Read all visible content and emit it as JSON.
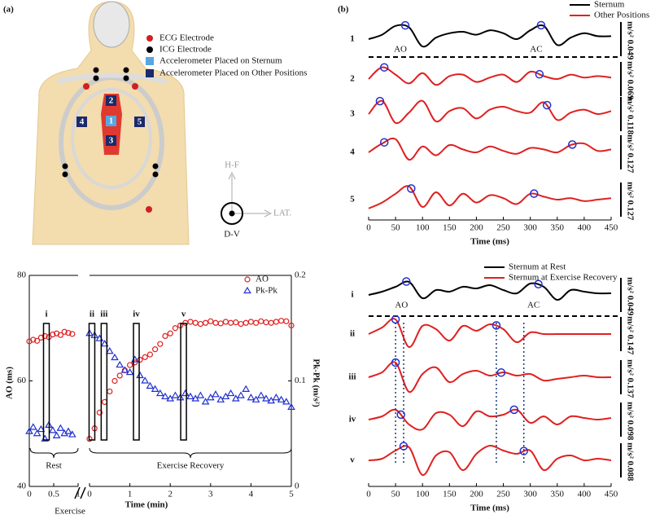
{
  "panel_labels": [
    "(a)",
    "(b)"
  ],
  "panel_a": {
    "legend": [
      "ECG Electrode",
      "ICG Electrode",
      "Accelerometer Placed on Sternum",
      "Accelerometer Placed on Other Positions"
    ],
    "positions": [
      "1",
      "2",
      "3",
      "4",
      "5"
    ],
    "axes": [
      "H-F",
      "LAT.",
      "D-V"
    ]
  },
  "chart_data": [
    {
      "type": "line",
      "xlabel": "Time (ms)",
      "xlim": [
        0,
        450
      ],
      "xticks": [
        0,
        50,
        100,
        150,
        200,
        250,
        300,
        350,
        400,
        450
      ],
      "legend": [
        {
          "name": "Sternum",
          "color": "#000000"
        },
        {
          "name": "Other Positions",
          "color": "#e02020"
        }
      ],
      "annotations": [
        "AO",
        "AC"
      ],
      "scale_unit": "m/s²",
      "x": [
        0,
        25,
        50,
        75,
        100,
        125,
        150,
        175,
        200,
        225,
        250,
        275,
        300,
        325,
        350,
        375,
        400,
        425,
        450
      ],
      "series": [
        {
          "label": "1",
          "color": "#000000",
          "scale": 0.049,
          "ao": 68,
          "ac": 320,
          "values": [
            0,
            0.3,
            0.9,
            0.8,
            -0.5,
            0.1,
            0.4,
            0.5,
            0.3,
            0.6,
            0.4,
            0.0,
            0.6,
            0.9,
            -0.4,
            0.1,
            0.4,
            0.2,
            0.2
          ]
        },
        {
          "label": "2",
          "color": "#e02020",
          "scale": 0.069,
          "ao": 29,
          "ac": 317,
          "values": [
            0,
            0.8,
            0.3,
            -0.3,
            0.4,
            -0.4,
            0.2,
            0.3,
            -0.2,
            0.1,
            0.3,
            -0.2,
            0.5,
            0.2,
            0.0,
            0.3,
            0.1,
            0.2,
            0.1
          ]
        },
        {
          "label": "3",
          "color": "#e02020",
          "scale": 0.118,
          "ao": 21,
          "ac": 331,
          "values": [
            0,
            0.9,
            -0.6,
            0.1,
            0.9,
            -0.5,
            0.2,
            0.4,
            -0.3,
            0.3,
            0.5,
            0.2,
            0.1,
            0.8,
            -0.4,
            0.1,
            0.3,
            0.0,
            0.2
          ]
        },
        {
          "label": "4",
          "color": "#e02020",
          "scale": 0.127,
          "ao": 29,
          "ac": 378,
          "values": [
            0,
            0.6,
            0.9,
            -0.5,
            0.4,
            -0.2,
            0.5,
            0.2,
            0.0,
            0.4,
            0.1,
            -0.1,
            0.3,
            0.2,
            0.0,
            0.5,
            0.6,
            0.1,
            0.2
          ]
        },
        {
          "label": "5",
          "color": "#e02020",
          "scale": 0.127,
          "ao": 79,
          "ac": 307,
          "values": [
            -0.6,
            -0.2,
            0.4,
            0.9,
            -0.5,
            0.5,
            -0.4,
            0.4,
            -0.2,
            0.3,
            0.1,
            -0.3,
            0.4,
            0.2,
            0.0,
            0.1,
            -0.1,
            0.0,
            0.1
          ]
        }
      ]
    },
    {
      "type": "scatter",
      "xlabel": "Time (min)",
      "ylabel": "AO (ms)",
      "y2label": "Pk-Pk (m/s²)",
      "ylim": [
        40,
        80
      ],
      "yticks": [
        40,
        60,
        80
      ],
      "y2lim": [
        0,
        0.2
      ],
      "y2ticks": [
        0,
        0.1,
        0.2
      ],
      "break_label": "Exercise",
      "segments": [
        {
          "name": "Rest",
          "xlim": [
            0,
            1
          ],
          "xticks": [
            0,
            0.5,
            1
          ]
        },
        {
          "name": "Exercise Recovery",
          "xlim": [
            0,
            5
          ],
          "xticks": [
            0,
            1,
            2,
            3,
            4,
            5
          ]
        }
      ],
      "highlights": [
        {
          "label": "i",
          "segment": 0,
          "x": 0.35
        },
        {
          "label": "ii",
          "segment": 1,
          "x": 0.06
        },
        {
          "label": "iii",
          "segment": 1,
          "x": 0.36
        },
        {
          "label": "iv",
          "segment": 1,
          "x": 1.16
        },
        {
          "label": "v",
          "segment": 1,
          "x": 2.33
        }
      ],
      "series": [
        {
          "name": "AO",
          "color": "#e02020",
          "marker": "circle",
          "axis": "y",
          "segments": [
            {
              "x": [
                0,
                0.08,
                0.16,
                0.24,
                0.32,
                0.4,
                0.48,
                0.56,
                0.64,
                0.72,
                0.8,
                0.88
              ],
              "values": [
                67.5,
                67.8,
                67.6,
                68.2,
                68.5,
                68.3,
                68.8,
                69.0,
                68.7,
                69.3,
                69.1,
                68.9
              ]
            },
            {
              "x": [
                0,
                0.125,
                0.25,
                0.375,
                0.5,
                0.625,
                0.75,
                0.875,
                1,
                1.125,
                1.25,
                1.375,
                1.5,
                1.625,
                1.75,
                1.875,
                2,
                2.125,
                2.25,
                2.375,
                2.5,
                2.625,
                2.75,
                2.875,
                3,
                3.125,
                3.25,
                3.375,
                3.5,
                3.625,
                3.75,
                3.875,
                4,
                4.125,
                4.25,
                4.375,
                4.5,
                4.625,
                4.75,
                4.875,
                5
              ],
              "values": [
                49,
                51,
                54,
                56,
                58,
                60,
                61,
                62,
                63,
                63.5,
                64,
                64.5,
                65,
                66,
                67,
                68.5,
                69,
                70,
                70.5,
                71,
                71.2,
                71,
                70.8,
                71,
                71.3,
                71,
                70.9,
                71.2,
                71,
                71.1,
                70.8,
                71,
                71.2,
                71,
                71.3,
                71.1,
                71,
                71.2,
                71.4,
                71.3,
                70.5
              ]
            }
          ]
        },
        {
          "name": "Pk-Pk",
          "color": "#2030d0",
          "marker": "triangle",
          "axis": "y2",
          "segments": [
            {
              "x": [
                0,
                0.08,
                0.16,
                0.24,
                0.32,
                0.4,
                0.48,
                0.56,
                0.64,
                0.72,
                0.8,
                0.88
              ],
              "values": [
                0.052,
                0.056,
                0.05,
                0.054,
                0.045,
                0.058,
                0.053,
                0.048,
                0.055,
                0.05,
                0.052,
                0.049
              ]
            },
            {
              "x": [
                0,
                0.125,
                0.25,
                0.375,
                0.5,
                0.625,
                0.75,
                0.875,
                1,
                1.125,
                1.25,
                1.375,
                1.5,
                1.625,
                1.75,
                1.875,
                2,
                2.125,
                2.25,
                2.375,
                2.5,
                2.625,
                2.75,
                2.875,
                3,
                3.125,
                3.25,
                3.375,
                3.5,
                3.625,
                3.75,
                3.875,
                4,
                4.125,
                4.25,
                4.375,
                4.5,
                4.625,
                4.75,
                4.875,
                5
              ],
              "values": [
                0.145,
                0.143,
                0.14,
                0.135,
                0.128,
                0.122,
                0.115,
                0.11,
                0.108,
                0.12,
                0.105,
                0.1,
                0.095,
                0.092,
                0.088,
                0.085,
                0.083,
                0.086,
                0.084,
                0.088,
                0.085,
                0.083,
                0.086,
                0.08,
                0.084,
                0.087,
                0.082,
                0.085,
                0.088,
                0.083,
                0.086,
                0.092,
                0.084,
                0.082,
                0.086,
                0.083,
                0.081,
                0.084,
                0.082,
                0.08,
                0.075
              ]
            }
          ]
        }
      ]
    },
    {
      "type": "line",
      "xlabel": "Time (ms)",
      "xlim": [
        0,
        450
      ],
      "xticks": [
        0,
        50,
        100,
        150,
        200,
        250,
        300,
        350,
        400,
        450
      ],
      "legend": [
        {
          "name": "Sternum at Rest",
          "color": "#000000"
        },
        {
          "name": "Sternum at Exercise Recovery",
          "color": "#e02020"
        }
      ],
      "annotations": [
        "AO",
        "AC"
      ],
      "scale_unit": "m/s²",
      "x": [
        0,
        25,
        50,
        75,
        100,
        125,
        150,
        175,
        200,
        225,
        250,
        275,
        300,
        325,
        350,
        375,
        400,
        425,
        450
      ],
      "series": [
        {
          "label": "i",
          "color": "#000000",
          "scale": 0.049,
          "ao": 70,
          "ac": 315,
          "values": [
            0,
            0.2,
            0.5,
            0.8,
            -0.2,
            0.3,
            0.2,
            0.5,
            0.4,
            0.6,
            0.3,
            0.1,
            0.7,
            0.5,
            -0.3,
            0.3,
            0.2,
            0.1,
            0.1
          ]
        },
        {
          "label": "ii",
          "color": "#e02020",
          "scale": 0.147,
          "ao": 50,
          "ac": 237,
          "values": [
            0,
            0.4,
            0.9,
            -0.8,
            0.5,
            0.3,
            -0.4,
            0.5,
            0.2,
            0.6,
            0.3,
            -0.5,
            0.1,
            0,
            0,
            0,
            0,
            0,
            0
          ]
        },
        {
          "label": "iii",
          "color": "#e02020",
          "scale": 0.137,
          "ao": 50,
          "ac": 246,
          "values": [
            0,
            0.3,
            0.9,
            -0.9,
            0.2,
            0.6,
            -0.3,
            0.2,
            0.4,
            0.1,
            0.3,
            0.1,
            0.2,
            -0.2,
            -0.1,
            0,
            0.1,
            0,
            0
          ]
        },
        {
          "label": "iv",
          "color": "#e02020",
          "scale": 0.098,
          "ao": 60,
          "ac": 270,
          "values": [
            0,
            0.2,
            0.6,
            -0.3,
            -0.6,
            0.4,
            0.3,
            -0.4,
            0.5,
            0.2,
            0.3,
            0.6,
            -0.2,
            0.2,
            -0.3,
            0.2,
            0.1,
            0,
            0.1
          ]
        },
        {
          "label": "v",
          "color": "#e02020",
          "scale": 0.088,
          "ao": 65,
          "ac": 288,
          "values": [
            0,
            0.1,
            0.6,
            0.8,
            -0.9,
            0.3,
            0.5,
            -0.6,
            0.4,
            0.9,
            0.6,
            0.4,
            0.6,
            -0.6,
            0.1,
            0.3,
            0,
            0.1,
            0
          ]
        }
      ]
    }
  ]
}
